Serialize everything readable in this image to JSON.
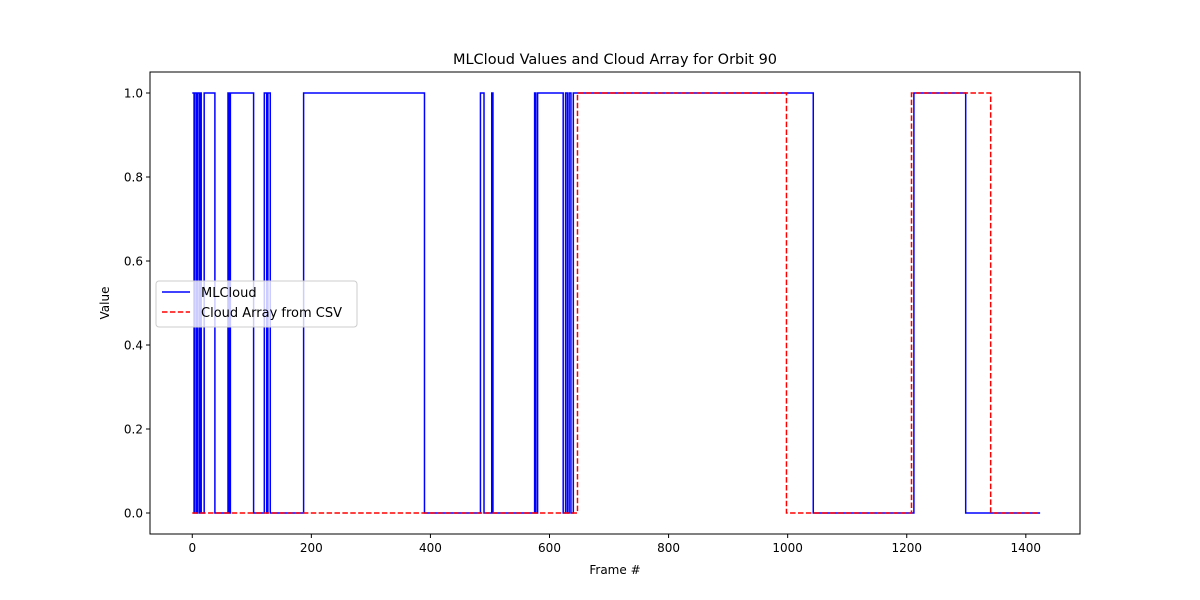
{
  "chart_data": {
    "type": "line",
    "title": "MLCloud Values and Cloud Array for Orbit 90",
    "xlabel": "Frame #",
    "ylabel": "Value",
    "xlim": [
      -71,
      1491
    ],
    "ylim": [
      -0.05,
      1.05
    ],
    "xticks": [
      0,
      200,
      400,
      600,
      800,
      1000,
      1200,
      1400
    ],
    "yticks": [
      0.0,
      0.2,
      0.4,
      0.6,
      0.8,
      1.0
    ],
    "ytick_labels": [
      "0.0",
      "0.2",
      "0.4",
      "0.6",
      "0.8",
      "1.0"
    ],
    "grid": false,
    "legend_position": "center-left",
    "series": [
      {
        "name": "MLCloud",
        "color": "#0000ff",
        "style": "solid",
        "drawstyle": "steps-post",
        "x": [
          0,
          3,
          4,
          7,
          9,
          12,
          14,
          15,
          18,
          20,
          38,
          58,
          60,
          62,
          64,
          66,
          103,
          121,
          125,
          127,
          131,
          184,
          187,
          390,
          484,
          490,
          503,
          505,
          575,
          577,
          580,
          623,
          627,
          630,
          633,
          636,
          640,
          643,
          1043,
          1209,
          1212,
          1299,
          1424
        ],
        "y": [
          1,
          0,
          1,
          0,
          1,
          0,
          1,
          0,
          0,
          1,
          0,
          0,
          1,
          0,
          1,
          1,
          0,
          1,
          0,
          1,
          0,
          0,
          1,
          0,
          1,
          0,
          1,
          0,
          1,
          0,
          1,
          0,
          1,
          0,
          1,
          0,
          1,
          1,
          0,
          0,
          1,
          0,
          0
        ]
      },
      {
        "name": "Cloud Array from CSV",
        "color": "#ff0000",
        "style": "dashed",
        "drawstyle": "steps-post",
        "x": [
          0,
          647,
          998,
          1208,
          1341,
          1424
        ],
        "y": [
          0,
          1,
          0,
          1,
          0,
          0
        ]
      }
    ]
  }
}
